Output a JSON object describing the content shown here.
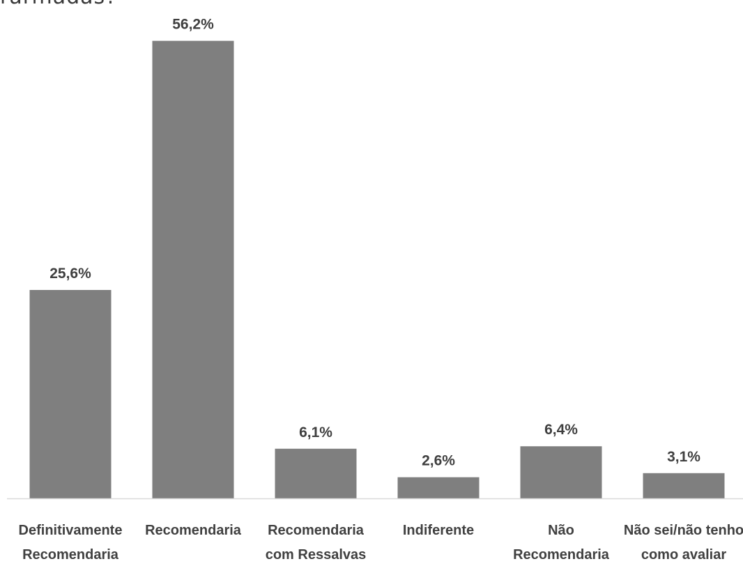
{
  "title_fragment": "rarmadas?",
  "chart_data": {
    "type": "bar",
    "title": "",
    "xlabel": "",
    "ylabel": "",
    "unit": "%",
    "ylim": [
      0,
      60
    ],
    "grid": false,
    "bar_color": "#7f7f7f",
    "categories": [
      [
        "Definitivamente",
        "Recomendaria"
      ],
      [
        "Recomendaria"
      ],
      [
        "Recomendaria",
        "com Ressalvas"
      ],
      [
        "Indiferente"
      ],
      [
        "Não",
        "Recomendaria"
      ],
      [
        "Não sei/não tenho",
        "como avaliar"
      ]
    ],
    "values": [
      25.6,
      56.2,
      6.1,
      2.6,
      6.4,
      3.1
    ],
    "value_labels": [
      "25,6%",
      "56,2%",
      "6,1%",
      "2,6%",
      "6,4%",
      "3,1%"
    ]
  }
}
